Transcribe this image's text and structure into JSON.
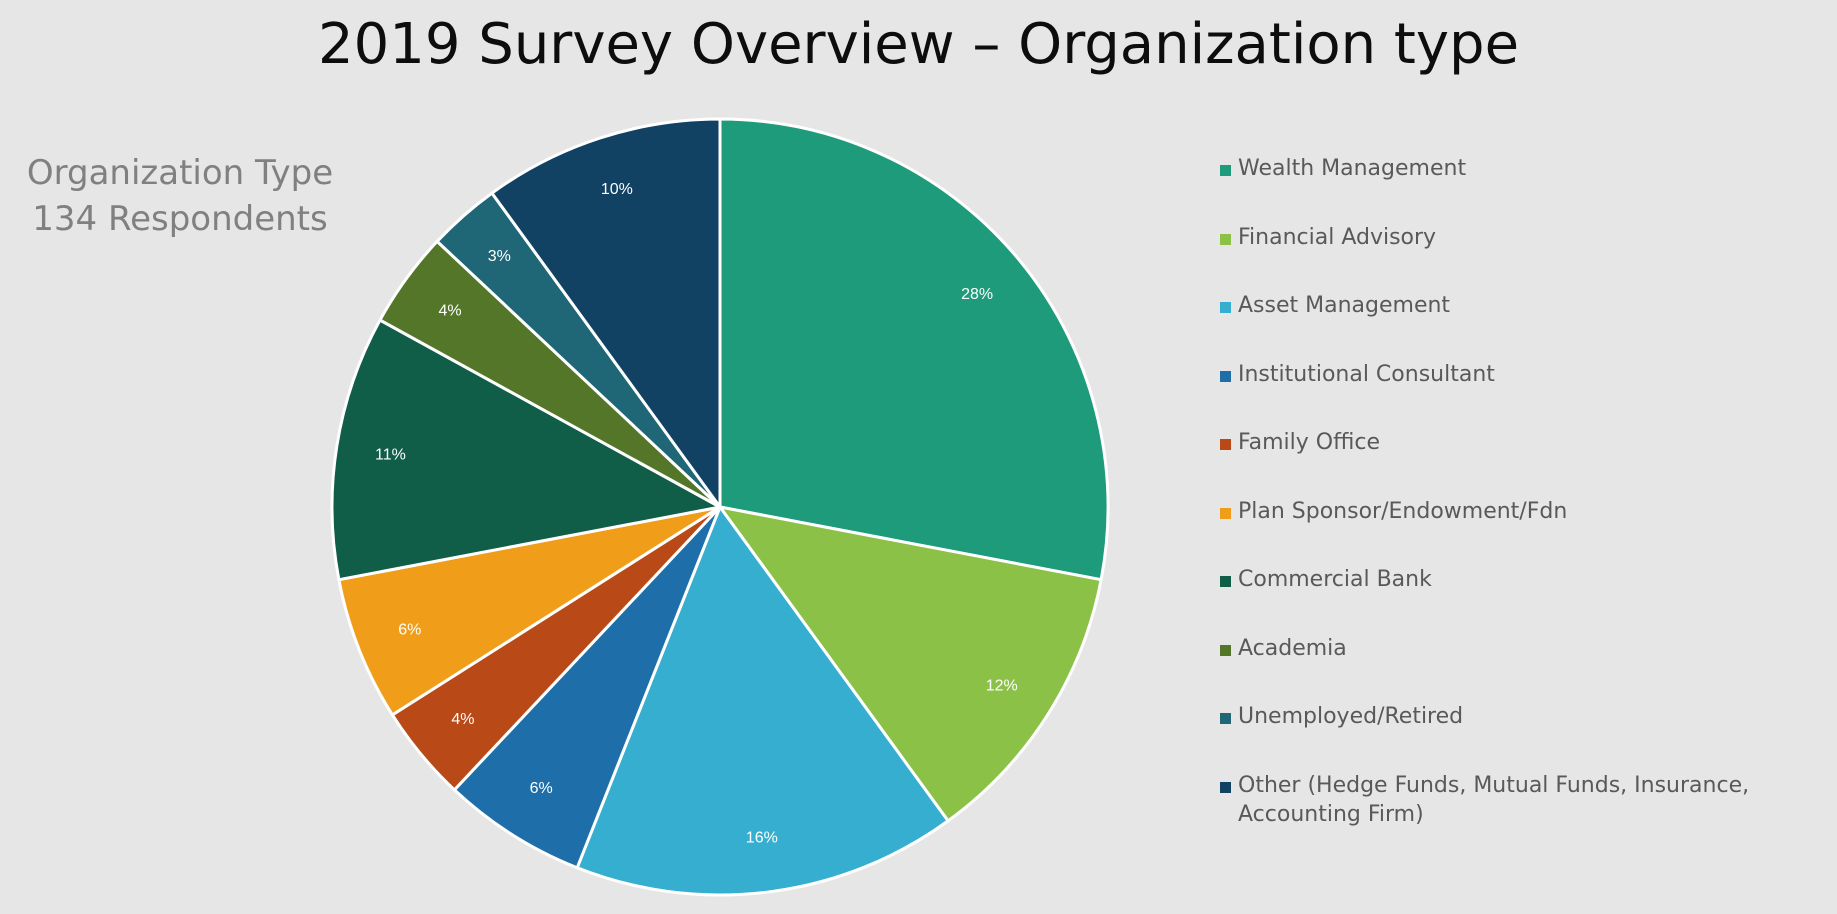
{
  "title": "2019 Survey Overview – Organization type",
  "subtitle": {
    "line1": "Organization Type",
    "line2": "134 Respondents"
  },
  "chart_data": {
    "type": "pie",
    "title": "2019 Survey Overview – Organization type",
    "legend_placement": "right",
    "start_angle": "12 o'clock, clockwise",
    "slices": [
      {
        "label": "Wealth Management",
        "value": 28,
        "display": "28%",
        "color": "#1e9b7a"
      },
      {
        "label": "Financial Advisory",
        "value": 12,
        "display": "12%",
        "color": "#8bc147"
      },
      {
        "label": "Asset Management",
        "value": 16,
        "display": "16%",
        "color": "#36aecf"
      },
      {
        "label": "Institutional Consultant",
        "value": 6,
        "display": "6%",
        "color": "#1e6fa9"
      },
      {
        "label": "Family Office",
        "value": 4,
        "display": "4%",
        "color": "#b94917"
      },
      {
        "label": "Plan Sponsor/Endowment/Fdn",
        "value": 6,
        "display": "6%",
        "color": "#f09e1a"
      },
      {
        "label": "Commercial Bank",
        "value": 11,
        "display": "11%",
        "color": "#105d48"
      },
      {
        "label": "Academia",
        "value": 4,
        "display": "4%",
        "color": "#537628"
      },
      {
        "label": "Unemployed/Retired",
        "value": 3,
        "display": "3%",
        "color": "#1f6677"
      },
      {
        "label": "Other (Hedge Funds, Mutual Funds, Insurance, Accounting Firm)",
        "value": 10,
        "display": "10%",
        "color": "#114163"
      }
    ]
  }
}
